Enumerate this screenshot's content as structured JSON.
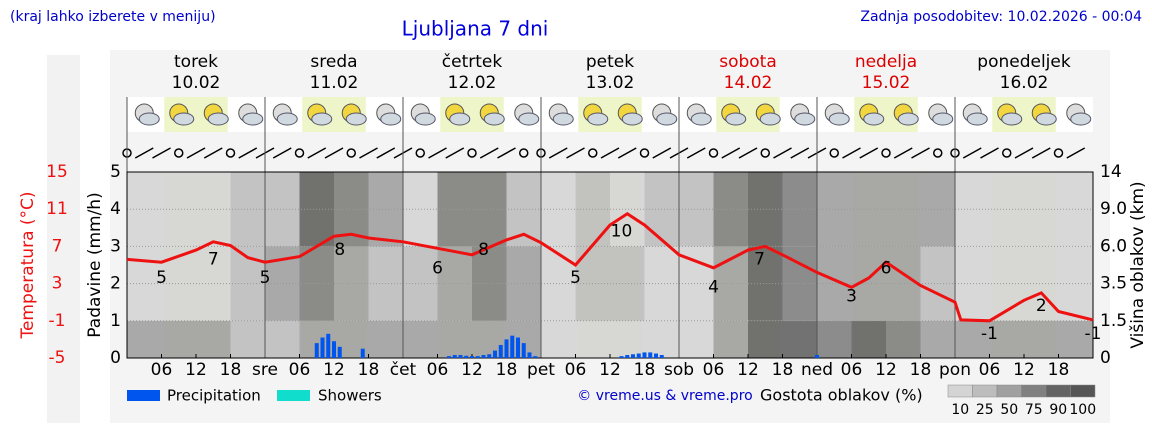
{
  "chart_data": {
    "type": "line",
    "title": "Ljubljana 7 dni",
    "note": "(kraj lahko izberete v meniju)",
    "updated": "Zadnja posodobitev: 10.02.2026 - 00:04",
    "days": [
      {
        "name": "torek",
        "date": "10.02",
        "color": "#000000"
      },
      {
        "name": "sreda",
        "date": "11.02",
        "color": "#000000"
      },
      {
        "name": "četrtek",
        "date": "12.02",
        "color": "#000000"
      },
      {
        "name": "petek",
        "date": "13.02",
        "color": "#000000"
      },
      {
        "name": "sobota",
        "date": "14.02",
        "color": "#dd0000"
      },
      {
        "name": "nedelja",
        "date": "15.02",
        "color": "#dd0000"
      },
      {
        "name": "ponedeljek",
        "date": "16.02",
        "color": "#000000"
      }
    ],
    "xlim": [
      0,
      168
    ],
    "xticks": [
      {
        "value": 6,
        "label": "06"
      },
      12,
      18,
      {
        "value": 24,
        "label": "sre"
      },
      {
        "value": 30,
        "label": "06"
      },
      {
        "value": 36,
        "label": "12"
      },
      {
        "value": 42,
        "label": "18"
      },
      {
        "value": 48,
        "label": "čet"
      },
      {
        "value": 54,
        "label": "06"
      },
      {
        "value": 60,
        "label": "12"
      },
      {
        "value": 66,
        "label": "18"
      },
      {
        "value": 72,
        "label": "pet"
      },
      {
        "value": 78,
        "label": "06"
      },
      {
        "value": 84,
        "label": "12"
      },
      {
        "value": 90,
        "label": "18"
      },
      {
        "value": 96,
        "label": "sob"
      },
      {
        "value": 102,
        "label": "06"
      },
      {
        "value": 108,
        "label": "12"
      },
      {
        "value": 114,
        "label": "18"
      },
      {
        "value": 120,
        "label": "ned"
      },
      {
        "value": 126,
        "label": "06"
      },
      {
        "value": 132,
        "label": "12"
      },
      {
        "value": 138,
        "label": "18"
      },
      {
        "value": 144,
        "label": "pon"
      },
      {
        "value": 150,
        "label": "06"
      },
      {
        "value": 156,
        "label": "12"
      },
      {
        "value": 162,
        "label": "18"
      }
    ],
    "ylabel": "Padavine (mm/h)",
    "ylim": [
      0,
      5
    ],
    "yticks": [
      0,
      1,
      2,
      3,
      4,
      5
    ],
    "temp_label": "Temperatura (°C)",
    "temp_lim": [
      -5,
      15
    ],
    "temp_ticks": [
      15,
      11,
      7,
      3,
      -1,
      -5
    ],
    "y2label": "Višina oblakov (km)",
    "y2lim": [
      0,
      14
    ],
    "y2ticks": [
      0,
      1.5,
      3.5,
      {
        "value": 6,
        "label": "6.0"
      },
      {
        "value": 9,
        "label": "9.0"
      },
      14
    ],
    "grid": true,
    "temperature": {
      "color": "#ee1111",
      "x": [
        0,
        6,
        12,
        15,
        18,
        21,
        24,
        30,
        36,
        39,
        42,
        48,
        54,
        60,
        66,
        69,
        72,
        78,
        84,
        87,
        90,
        96,
        102,
        108,
        111,
        114,
        120,
        126,
        129,
        132,
        138,
        144,
        145,
        150,
        156,
        159,
        162,
        168
      ],
      "values": [
        5.6,
        5.3,
        6.6,
        7.5,
        7.1,
        5.8,
        5.3,
        5.9,
        8.1,
        8.3,
        7.9,
        7.5,
        6.8,
        6.1,
        7.7,
        8.3,
        7.4,
        5.0,
        9.3,
        10.5,
        9.3,
        6.1,
        4.7,
        6.6,
        7.0,
        6.1,
        4.2,
        2.6,
        3.6,
        5.3,
        2.8,
        1.0,
        -0.9,
        -1.0,
        1.2,
        2.0,
        0.0,
        -0.9
      ]
    },
    "temp_extremes": {
      "x": [
        6,
        15,
        24,
        37,
        54,
        62,
        78,
        86,
        102,
        110,
        126,
        132,
        150,
        159,
        168
      ],
      "values": [
        5,
        7,
        5,
        8,
        6,
        8,
        5,
        10,
        4,
        7,
        3,
        6,
        -1,
        2,
        -1
      ]
    },
    "precipitation": {
      "name": "Precipitation",
      "color": "#0055ee",
      "x": [
        33,
        34,
        35,
        36,
        37,
        41,
        56,
        57,
        58,
        59,
        60,
        61,
        62,
        63,
        64,
        65,
        66,
        67,
        68,
        69,
        70,
        71,
        86,
        87,
        88,
        89,
        90,
        91,
        92,
        93,
        120
      ],
      "values": [
        0.4,
        0.55,
        0.65,
        0.45,
        0.3,
        0.25,
        0.05,
        0.08,
        0.08,
        0.06,
        0.05,
        0.05,
        0.08,
        0.1,
        0.2,
        0.35,
        0.5,
        0.6,
        0.55,
        0.4,
        0.15,
        0.05,
        0.05,
        0.08,
        0.1,
        0.12,
        0.15,
        0.15,
        0.12,
        0.08,
        0.08
      ]
    },
    "showers": {
      "name": "Showers",
      "color": "#11ddcc"
    },
    "copyright": "© vreme.us & vreme.pro",
    "cloud_legend": {
      "title": "Gostota oblakov (%)",
      "levels": [
        10,
        25,
        50,
        75,
        90,
        100
      ],
      "colors": [
        "#d4d4d4",
        "#bdbdbd",
        "#a0a0a0",
        "#808080",
        "#636363",
        "#555555"
      ]
    },
    "cloud_layers": [
      {
        "range": [
          0,
          1.5
        ],
        "values": [
          60,
          60,
          50,
          40,
          40,
          60,
          50,
          50,
          60,
          70,
          60,
          60,
          20,
          10,
          10,
          20,
          20,
          50,
          90,
          90,
          80,
          90,
          80,
          60,
          70,
          60,
          70,
          50
        ]
      },
      {
        "range": [
          1.5,
          6
        ],
        "values": [
          10,
          10,
          20,
          30,
          50,
          75,
          60,
          40,
          30,
          70,
          80,
          50,
          20,
          30,
          40,
          20,
          20,
          60,
          90,
          85,
          50,
          60,
          60,
          40,
          20,
          20,
          20,
          10
        ]
      },
      {
        "range": [
          6,
          14
        ],
        "values": [
          10,
          10,
          20,
          40,
          40,
          90,
          80,
          50,
          20,
          75,
          85,
          40,
          10,
          30,
          20,
          30,
          30,
          80,
          90,
          80,
          60,
          60,
          50,
          50,
          10,
          10,
          10,
          10
        ]
      }
    ]
  }
}
